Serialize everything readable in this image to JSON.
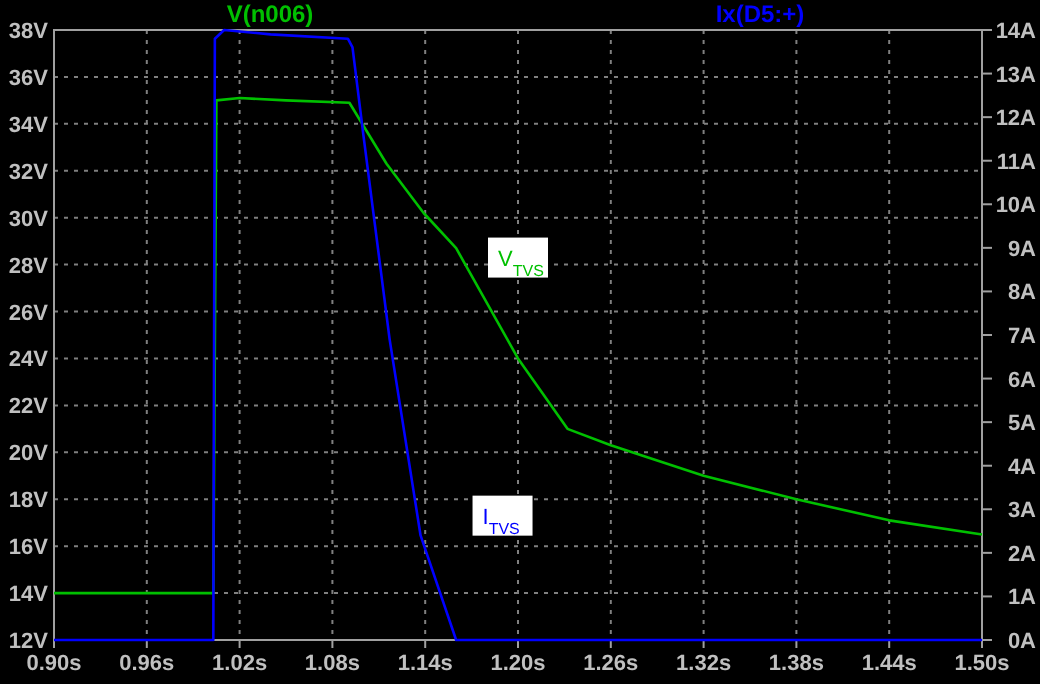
{
  "chart_data": {
    "type": "line",
    "series": [
      {
        "name": "V(n006)",
        "color": "#00c000",
        "axis": "y",
        "x": [
          0.9,
          1.003,
          1.005,
          1.02,
          1.05,
          1.091,
          1.115,
          1.139,
          1.16,
          1.2,
          1.232,
          1.26,
          1.32,
          1.38,
          1.44,
          1.5
        ],
        "values": [
          14,
          14,
          35.0,
          35.1,
          35.0,
          34.9,
          32.3,
          30.2,
          28.7,
          24.0,
          21.0,
          20.3,
          19.0,
          18.0,
          17.1,
          16.5
        ]
      },
      {
        "name": "Ix(D5:+)",
        "color": "#0000ff",
        "axis": "y2",
        "x": [
          0.9,
          1.003,
          1.004,
          1.01,
          1.04,
          1.09,
          1.093,
          1.1,
          1.117,
          1.137,
          1.16,
          1.5
        ],
        "values": [
          0,
          0,
          13.8,
          14,
          13.9,
          13.8,
          13.6,
          11.6,
          6.9,
          2.4,
          0,
          0
        ]
      }
    ],
    "xlim": [
      0.9,
      1.5
    ],
    "xticks": [
      {
        "value": 0.9,
        "label": "0.90s"
      },
      {
        "value": 0.96,
        "label": "0.96s"
      },
      {
        "value": 1.02,
        "label": "1.02s"
      },
      {
        "value": 1.08,
        "label": "1.08s"
      },
      {
        "value": 1.14,
        "label": "1.14s"
      },
      {
        "value": 1.2,
        "label": "1.20s"
      },
      {
        "value": 1.26,
        "label": "1.26s"
      },
      {
        "value": 1.32,
        "label": "1.32s"
      },
      {
        "value": 1.38,
        "label": "1.38s"
      },
      {
        "value": 1.44,
        "label": "1.44s"
      },
      {
        "value": 1.5,
        "label": "1.50s"
      }
    ],
    "ylim": [
      12,
      38
    ],
    "yticks": [
      {
        "value": 12,
        "label": "12V"
      },
      {
        "value": 14,
        "label": "14V"
      },
      {
        "value": 16,
        "label": "16V"
      },
      {
        "value": 18,
        "label": "18V"
      },
      {
        "value": 20,
        "label": "20V"
      },
      {
        "value": 22,
        "label": "22V"
      },
      {
        "value": 24,
        "label": "24V"
      },
      {
        "value": 26,
        "label": "26V"
      },
      {
        "value": 28,
        "label": "28V"
      },
      {
        "value": 30,
        "label": "30V"
      },
      {
        "value": 32,
        "label": "32V"
      },
      {
        "value": 34,
        "label": "34V"
      },
      {
        "value": 36,
        "label": "36V"
      },
      {
        "value": 38,
        "label": "38V"
      }
    ],
    "y2lim": [
      0,
      14
    ],
    "y2ticks": [
      {
        "value": 0,
        "label": "0A"
      },
      {
        "value": 1,
        "label": "1A"
      },
      {
        "value": 2,
        "label": "2A"
      },
      {
        "value": 3,
        "label": "3A"
      },
      {
        "value": 4,
        "label": "4A"
      },
      {
        "value": 5,
        "label": "5A"
      },
      {
        "value": 6,
        "label": "6A"
      },
      {
        "value": 7,
        "label": "7A"
      },
      {
        "value": 8,
        "label": "8A"
      },
      {
        "value": 9,
        "label": "9A"
      },
      {
        "value": 10,
        "label": "10A"
      },
      {
        "value": 11,
        "label": "11A"
      },
      {
        "value": 12,
        "label": "12A"
      },
      {
        "value": 13,
        "label": "13A"
      },
      {
        "value": 14,
        "label": "14A"
      }
    ],
    "annotations": [
      {
        "text": "V$_{TVS}$",
        "x": 1.2,
        "y": 28.3
      },
      {
        "text": "I$_{TVS}$",
        "x": 1.19,
        "y": 17.3
      }
    ],
    "grid": true,
    "legend": "top",
    "line_style": "solid"
  }
}
